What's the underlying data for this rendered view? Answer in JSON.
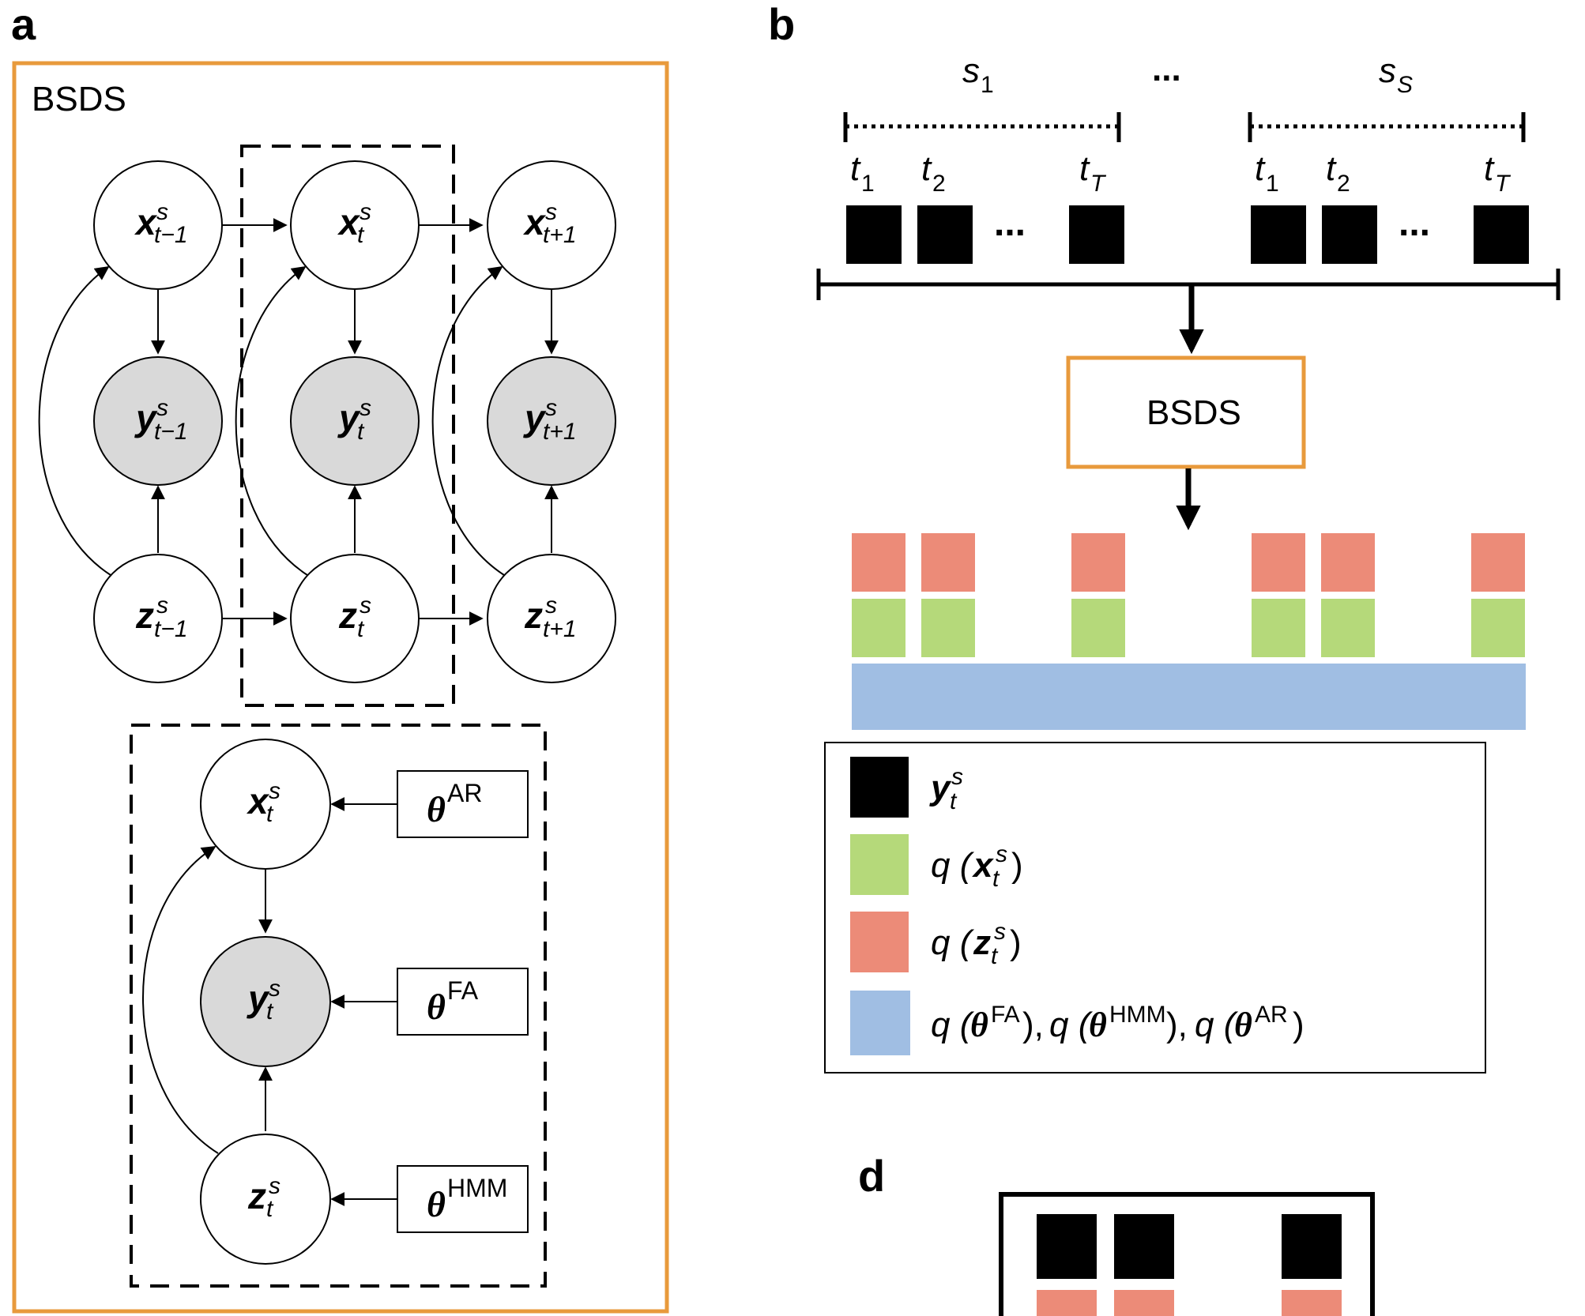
{
  "panels": {
    "a": "a",
    "b": "b",
    "d": "d"
  },
  "bsds_frame_label": "BSDS",
  "bsds_box_label": "BSDS",
  "colors": {
    "orange": "#E89A3C",
    "observed_fill": "#d9d9d9",
    "black_block": "#000000",
    "z_block": "#EC8B78",
    "x_block": "#B5D97A",
    "theta_bar": "#A0BEE3"
  },
  "nodes": {
    "x_prev": {
      "base": "x",
      "sup": "s",
      "sub": "t−1"
    },
    "x_cur": {
      "base": "x",
      "sup": "s",
      "sub": "t"
    },
    "x_next": {
      "base": "x",
      "sup": "s",
      "sub": "t+1"
    },
    "y_prev": {
      "base": "y",
      "sup": "s",
      "sub": "t−1"
    },
    "y_cur": {
      "base": "y",
      "sup": "s",
      "sub": "t"
    },
    "y_next": {
      "base": "y",
      "sup": "s",
      "sub": "t+1"
    },
    "z_prev": {
      "base": "z",
      "sup": "s",
      "sub": "t−1"
    },
    "z_cur": {
      "base": "z",
      "sup": "s",
      "sub": "t"
    },
    "z_next": {
      "base": "z",
      "sup": "s",
      "sub": "t+1"
    },
    "x_plate": {
      "base": "x",
      "sup": "s",
      "sub": "t"
    },
    "y_plate": {
      "base": "y",
      "sup": "s",
      "sub": "t"
    },
    "z_plate": {
      "base": "z",
      "sup": "s",
      "sub": "t"
    }
  },
  "thetas": {
    "ar": {
      "base": "θ",
      "sup": "AR"
    },
    "fa": {
      "base": "θ",
      "sup": "FA"
    },
    "hmm": {
      "base": "θ",
      "sup": "HMM"
    }
  },
  "subjects": {
    "first": {
      "base": "s",
      "sub": "1"
    },
    "ellipsis": "...",
    "last": {
      "base": "s",
      "sub": "S"
    }
  },
  "time_labels": [
    {
      "base": "t",
      "sub": "1"
    },
    {
      "base": "t",
      "sub": "2"
    },
    {
      "base": "t",
      "sub": "T"
    },
    {
      "base": "t",
      "sub": "1"
    },
    {
      "base": "t",
      "sub": "2"
    },
    {
      "base": "t",
      "sub": "T"
    }
  ],
  "block_ellipsis": "...",
  "legend": {
    "y": {
      "base": "y",
      "sup": "s",
      "sub": "t"
    },
    "qx": {
      "prefix": "q (",
      "base": "x",
      "sup": "s",
      "sub": "t",
      "suffix": ")"
    },
    "qz": {
      "prefix": "q (",
      "base": "z",
      "sup": "s",
      "sub": "t",
      "suffix": ")"
    },
    "qtheta": {
      "part1_prefix": "q (",
      "part1_sup": "FA",
      "part1_suffix": "), ",
      "part2_prefix": "q (",
      "part2_sup": "HMM",
      "part2_suffix": "), ",
      "part3_prefix": "q (",
      "part3_sup": "AR",
      "part3_suffix": ")",
      "theta": "θ"
    }
  }
}
